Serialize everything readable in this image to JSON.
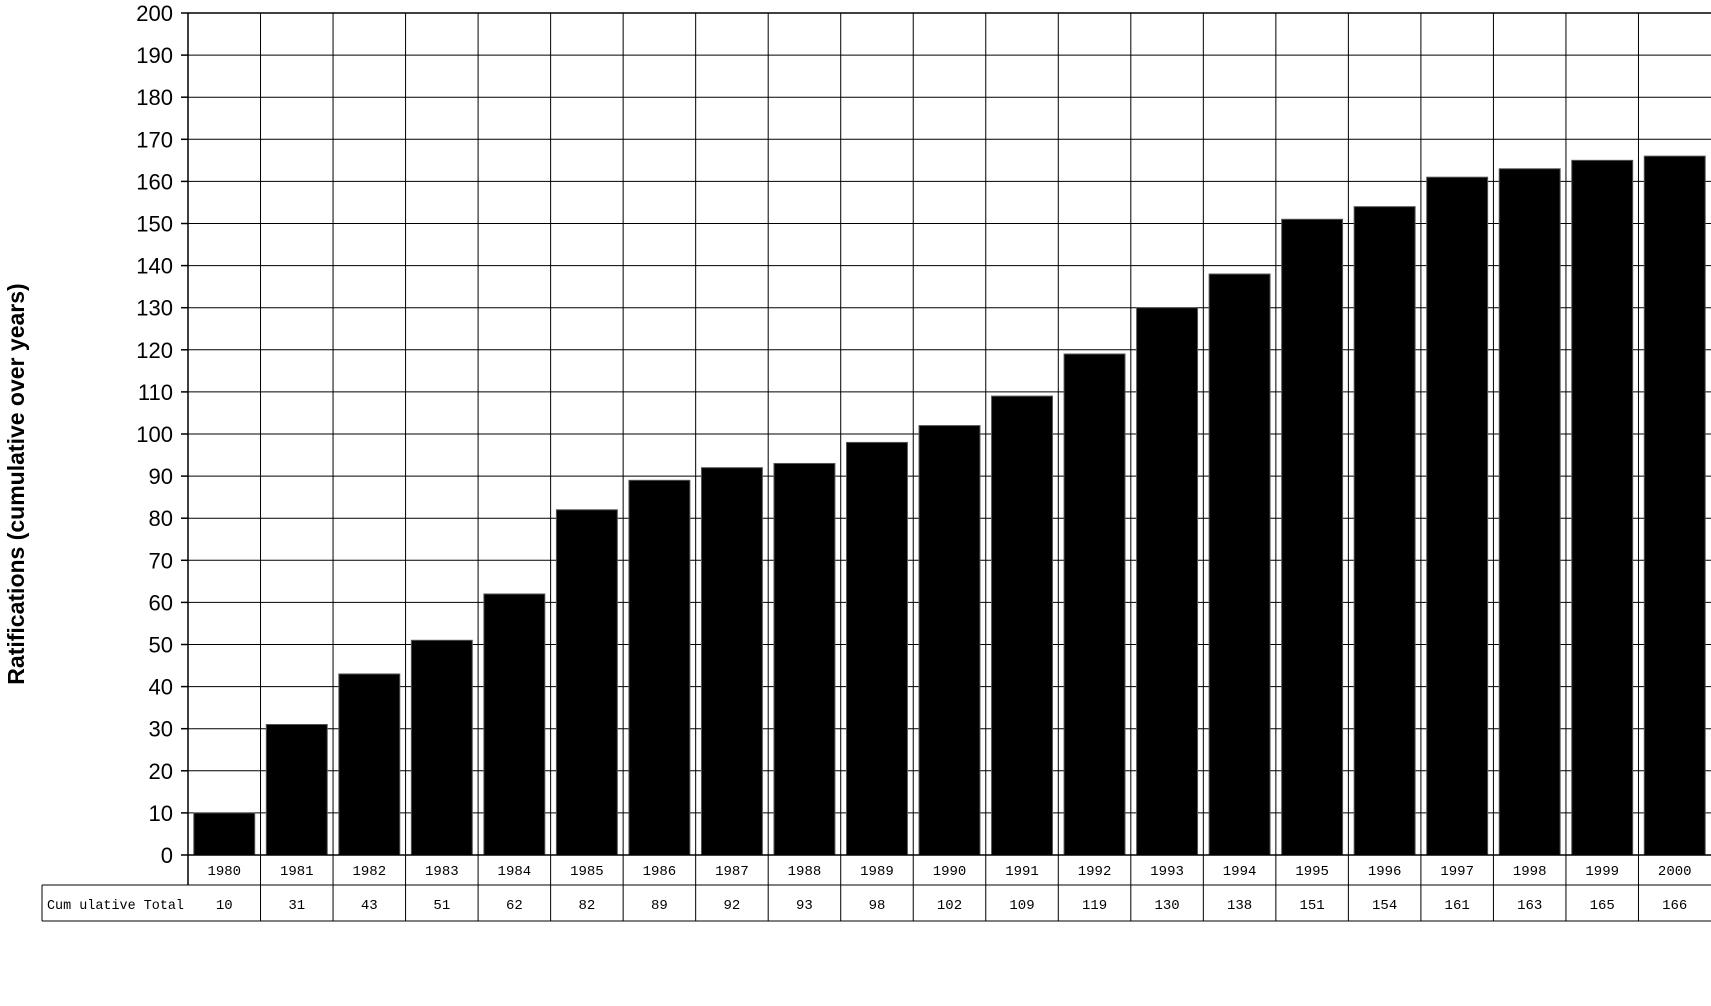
{
  "chart_data": {
    "type": "bar",
    "title": "",
    "xlabel": "",
    "ylabel": "Ratifications (cumulative over years)",
    "categories": [
      "1980",
      "1981",
      "1982",
      "1983",
      "1984",
      "1985",
      "1986",
      "1987",
      "1988",
      "1989",
      "1990",
      "1991",
      "1992",
      "1993",
      "1994",
      "1995",
      "1996",
      "1997",
      "1998",
      "1999",
      "2000"
    ],
    "values": [
      10,
      31,
      43,
      51,
      62,
      82,
      89,
      92,
      93,
      98,
      102,
      109,
      119,
      130,
      138,
      151,
      154,
      161,
      163,
      165,
      166
    ],
    "ylim": [
      0,
      200
    ],
    "yticks": [
      0,
      10,
      20,
      30,
      40,
      50,
      60,
      70,
      80,
      90,
      100,
      110,
      120,
      130,
      140,
      150,
      160,
      170,
      180,
      190,
      200
    ],
    "grid": true,
    "bar_color": "#000000",
    "data_table": {
      "row_label": "Cum ulative Total",
      "values": [
        "10",
        "31",
        "43",
        "51",
        "62",
        "82",
        "89",
        "92",
        "93",
        "98",
        "102",
        "109",
        "119",
        "130",
        "138",
        "151",
        "154",
        "161",
        "163",
        "165",
        "166"
      ]
    }
  }
}
